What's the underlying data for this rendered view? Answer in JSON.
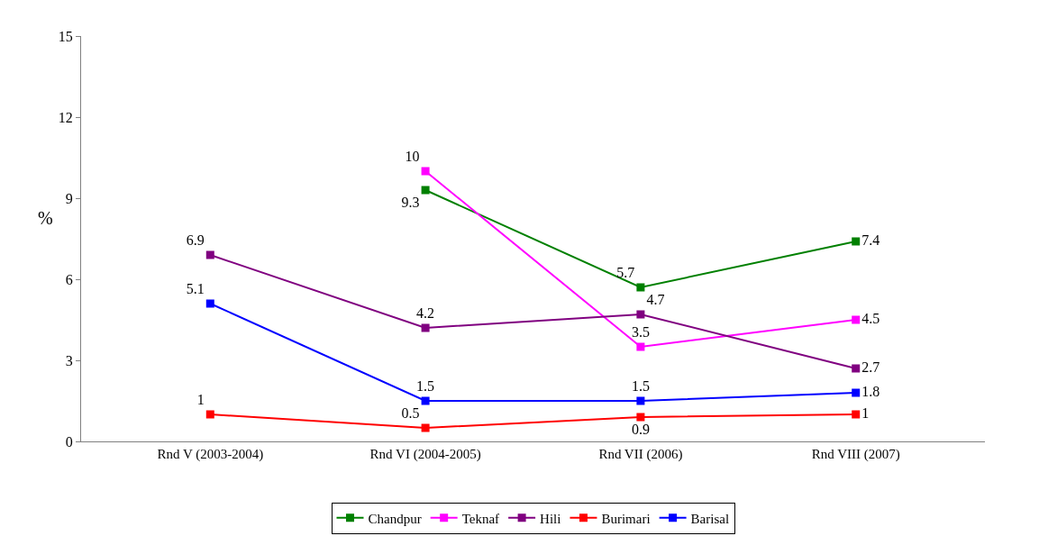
{
  "chart_data": {
    "type": "line",
    "ylabel": "%",
    "categories": [
      "Rnd V (2003-2004)",
      "Rnd VI (2004-2005)",
      "Rnd VII (2006)",
      "Rnd VIII (2007)"
    ],
    "series": [
      {
        "name": "Chandpur",
        "color": "#008000",
        "values": [
          null,
          9.3,
          5.7,
          7.4
        ]
      },
      {
        "name": "Teknaf",
        "color": "#ff00ff",
        "values": [
          null,
          10,
          3.5,
          4.5
        ]
      },
      {
        "name": "Hili",
        "color": "#800080",
        "values": [
          6.9,
          4.2,
          4.7,
          2.7
        ]
      },
      {
        "name": "Burimari",
        "color": "#ff0000",
        "values": [
          1,
          0.5,
          0.9,
          1
        ]
      },
      {
        "name": "Barisal",
        "color": "#0000ff",
        "values": [
          5.1,
          1.5,
          1.5,
          1.8
        ]
      }
    ],
    "ylim": [
      0,
      15
    ],
    "yticks": [
      0,
      3,
      6,
      9,
      12,
      15
    ],
    "legend": "bottom",
    "marker": "square",
    "line_style": "solid",
    "data_labels": true
  }
}
